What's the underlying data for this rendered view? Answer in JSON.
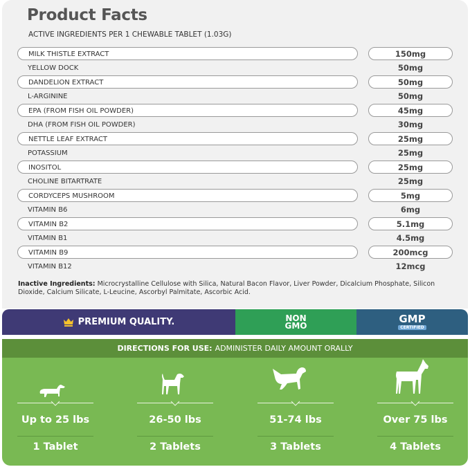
{
  "title": "Product Facts",
  "subtitle": "ACTIVE INGREDIENTS PER 1 CHEWABLE TABLET (1.03G)",
  "ingredients": [
    {
      "name": "MILK THISTLE EXTRACT",
      "amount": "150mg"
    },
    {
      "name": "YELLOW DOCK",
      "amount": "50mg"
    },
    {
      "name": "DANDELION EXTRACT",
      "amount": "50mg"
    },
    {
      "name": "L-ARGININE",
      "amount": "50mg"
    },
    {
      "name": "EPA (FROM FISH OIL POWDER)",
      "amount": "45mg"
    },
    {
      "name": "DHA (FROM FISH OIL POWDER)",
      "amount": "30mg"
    },
    {
      "name": "NETTLE LEAF EXTRACT",
      "amount": "25mg"
    },
    {
      "name": "POTASSIUM",
      "amount": "25mg"
    },
    {
      "name": "INOSITOL",
      "amount": "25mg"
    },
    {
      "name": "CHOLINE BITARTRATE",
      "amount": "25mg"
    },
    {
      "name": "CORDYCEPS MUSHROOM",
      "amount": "5mg"
    },
    {
      "name": "VITAMIN B6",
      "amount": "6mg"
    },
    {
      "name": "VITAMIN B2",
      "amount": "5.1mg"
    },
    {
      "name": "VITAMIN B1",
      "amount": "4.5mg"
    },
    {
      "name": "VITAMIN B9",
      "amount": "200mcg"
    },
    {
      "name": "VITAMIN B12",
      "amount": "12mcg"
    }
  ],
  "inactive": {
    "label": "Inactive Ingredients:",
    "text": " Microcrystalline Cellulose with Silica, Natural Bacon Flavor, Liver Powder, Dicalcium Phosphate, Silicon Dioxide, Calcium Silicate, L-Leucine, Ascorbyl Palmitate, Ascorbic Acid."
  },
  "badges": {
    "premium": "PREMIUM QUALITY.",
    "premium_icon": "crown-icon",
    "non_gmo_line1": "NON",
    "non_gmo_line2": "GMO",
    "gmp": "GMP",
    "gmp_sub": "CERTIFIED"
  },
  "directions": {
    "label": "DIRECTIONS FOR USE:",
    "text": "ADMINISTER DAILY AMOUNT ORALLY"
  },
  "dosage": [
    {
      "weight": "Up to 25 lbs",
      "tablets": "1 Tablet",
      "icon": "small-dog-icon"
    },
    {
      "weight": "26-50 lbs",
      "tablets": "2 Tablets",
      "icon": "medium-dog-icon"
    },
    {
      "weight": "51-74 lbs",
      "tablets": "3 Tablets",
      "icon": "large-dog-icon"
    },
    {
      "weight": "Over 75 lbs",
      "tablets": "4 Tablets",
      "icon": "extra-large-dog-icon"
    }
  ],
  "colors": {
    "card": "#f1f1f1",
    "premium": "#3f3a75",
    "non_gmo": "#2f9f56",
    "gmp": "#2e5f80",
    "directions_bar": "#5c8f3a",
    "dosage_bg": "#79b953"
  }
}
